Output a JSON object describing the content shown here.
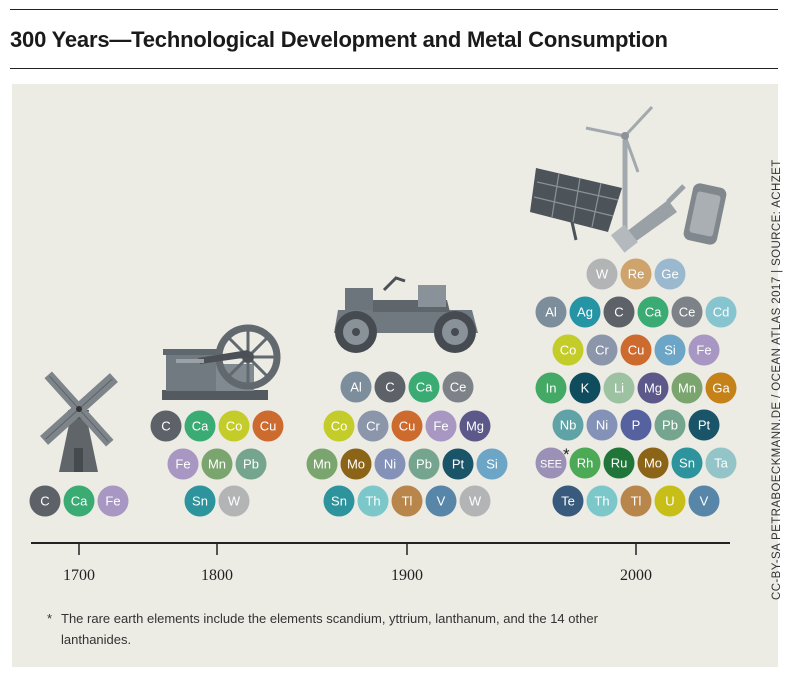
{
  "title": "300 Years—Technological Development and Metal Consumption",
  "credit": "CC-BY-SA PETRABOECKMANN.DE / OCEAN ATLAS 2017 | SOURCE: ACHZET",
  "footnote": {
    "marker": "*",
    "line1": "The rare earth elements include the elements scandium, yttrium, lanthanum, and the 14 other",
    "line2": "lanthanides."
  },
  "icons": {
    "1700": "windmill-icon",
    "1800": "steam-engine-icon",
    "1900": "vintage-car-icon",
    "2000": "modern-tech-icon"
  },
  "element_colors": {
    "C": "#5c6268",
    "Ca": "#3bab74",
    "Fe": "#a797c2",
    "Co": "#c4cc2a",
    "Cu": "#cd6a2e",
    "Mn": "#7ba56e",
    "Pb": "#75a58e",
    "Sn": "#2d939c",
    "W": "#b3b4b6",
    "Al": "#7c8d9c",
    "Ce": "#7c8288",
    "Cr": "#8c96aa",
    "Mg": "#5c588a",
    "Mo": "#8c6418",
    "Ni": "#8592b8",
    "Pt": "#1a5468",
    "Si": "#6ca5c5",
    "Th": "#7bc7c9",
    "Tl": "#b8864a",
    "V": "#5786a8",
    "Re": "#cfa36c",
    "Ge": "#9bb9ce",
    "Ag": "#2595a5",
    "Cd": "#86c5d0",
    "In": "#43a965",
    "K": "#0e4c5e",
    "Li": "#9dc2a2",
    "Ga": "#c48218",
    "Nb": "#5fa3a7",
    "P": "#5662a0",
    "SEE": "#9b91b6",
    "Rh": "#4ca955",
    "Ru": "#1f7638",
    "Ta": "#93c4c8",
    "Te": "#385a7c",
    "U": "#c7bf18"
  },
  "chart_data": {
    "type": "timeline",
    "x_axis": {
      "ticks": [
        "1700",
        "1800",
        "1900",
        "2000"
      ]
    },
    "groups": [
      {
        "period": "1700",
        "icon": "windmill-icon",
        "rows": [
          [
            "C",
            "Ca",
            "Fe"
          ]
        ]
      },
      {
        "period": "1800",
        "icon": "steam-engine-icon",
        "rows": [
          [
            "C",
            "Ca",
            "Co",
            "Cu"
          ],
          [
            "Fe",
            "Mn",
            "Pb"
          ],
          [
            "Sn",
            "W"
          ]
        ]
      },
      {
        "period": "1900",
        "icon": "vintage-car-icon",
        "rows": [
          [
            "Al",
            "C",
            "Ca",
            "Ce"
          ],
          [
            "Co",
            "Cr",
            "Cu",
            "Fe",
            "Mg"
          ],
          [
            "Mn",
            "Mo",
            "Ni",
            "Pb",
            "Pt",
            "Si"
          ],
          [
            "Sn",
            "Th",
            "Tl",
            "V",
            "W"
          ]
        ]
      },
      {
        "period": "2000",
        "icon": "modern-tech-icon",
        "rows": [
          [
            "W",
            "Re",
            "Ge"
          ],
          [
            "Al",
            "Ag",
            "C",
            "Ca",
            "Ce",
            "Cd"
          ],
          [
            "Co",
            "Cr",
            "Cu",
            "Si",
            "Fe"
          ],
          [
            "In",
            "K",
            "Li",
            "Mg",
            "Mn",
            "Ga"
          ],
          [
            "Nb",
            "Ni",
            "P",
            "Pb",
            "Pt"
          ],
          [
            "SEE*",
            "Rh",
            "Ru",
            "Mo",
            "Sn",
            "Ta"
          ],
          [
            "Te",
            "Th",
            "Tl",
            "U",
            "V"
          ]
        ]
      }
    ]
  }
}
